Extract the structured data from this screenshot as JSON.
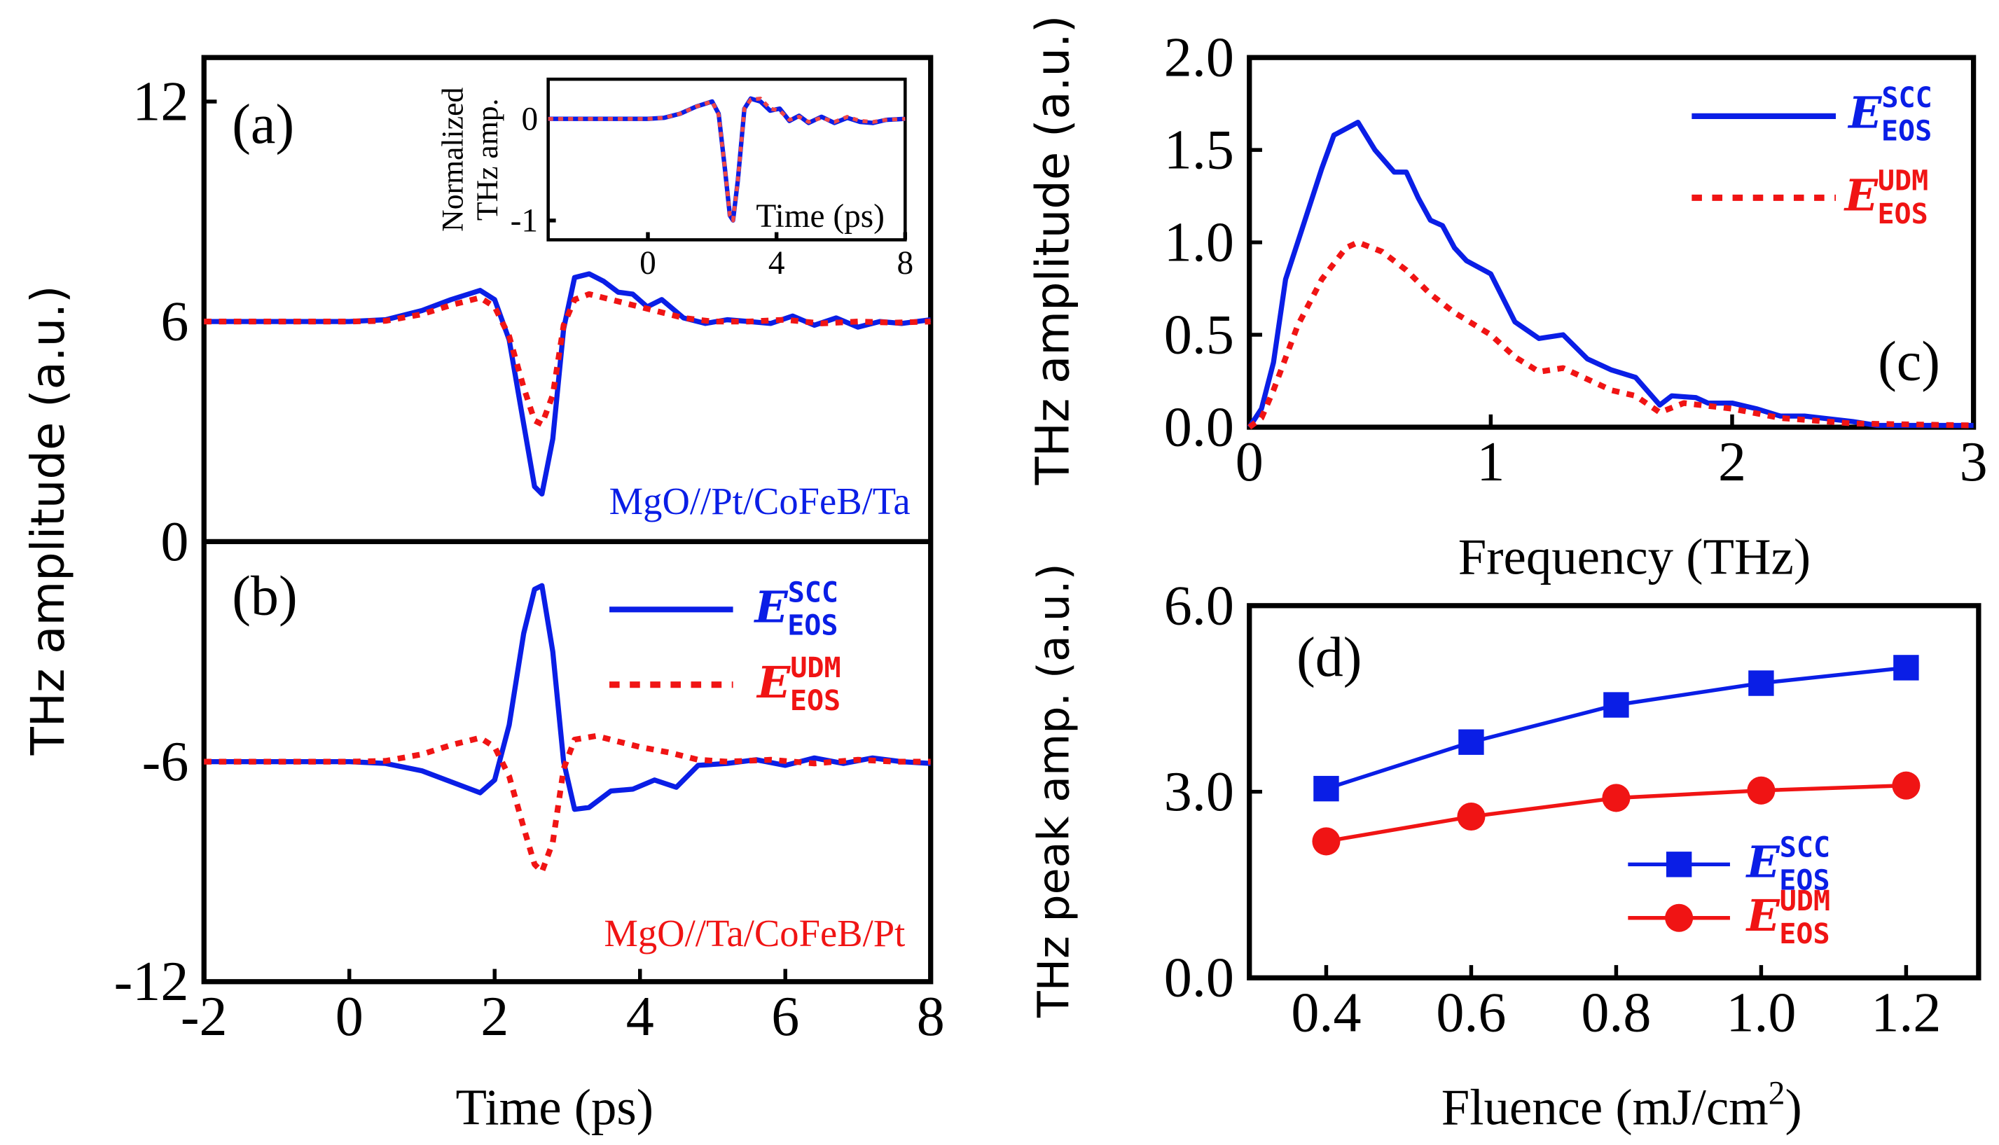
{
  "colors": {
    "scc": "#0a1ee6",
    "udm": "#f01414",
    "inset_udm": "#f04848"
  },
  "legend": {
    "scc": {
      "main": "E",
      "sup": "SCC",
      "sub": "EOS"
    },
    "udm": {
      "main": "E",
      "sup": "UDM",
      "sub": "EOS"
    }
  },
  "chart_data": [
    {
      "id": "ab",
      "type": "line",
      "panels": [
        "(a)",
        "(b)"
      ],
      "xlabel": "Time (ps)",
      "ylabel": "THz amplitude (a.u.)",
      "xlim": [
        -2,
        8
      ],
      "ylim": [
        -12,
        13.2
      ],
      "xticks": [
        "-2",
        "0",
        "2",
        "4",
        "6",
        "8"
      ],
      "xtick_values": [
        -2,
        0,
        2,
        4,
        6,
        8
      ],
      "yticks": [
        "12",
        "6",
        "0",
        "-6",
        "-12"
      ],
      "ytick_values": [
        12,
        6,
        0,
        -6,
        -12
      ],
      "annotations": {
        "a": "MgO//Pt/CoFeB/Ta",
        "b": "MgO//Ta/CoFeB/Pt"
      },
      "series": [
        {
          "name": "E_EOS^SCC",
          "panel": "a",
          "style": "solid",
          "x": [
            -2,
            0,
            0.5,
            1.0,
            1.4,
            1.8,
            2.0,
            2.2,
            2.4,
            2.55,
            2.65,
            2.8,
            2.95,
            3.1,
            3.3,
            3.5,
            3.7,
            3.9,
            4.1,
            4.3,
            4.6,
            4.9,
            5.2,
            5.5,
            5.8,
            6.1,
            6.4,
            6.7,
            7.0,
            7.3,
            7.6,
            8
          ],
          "y": [
            6,
            6,
            6.05,
            6.3,
            6.6,
            6.85,
            6.6,
            5.5,
            3.2,
            1.5,
            1.3,
            2.8,
            5.8,
            7.2,
            7.3,
            7.1,
            6.8,
            6.75,
            6.4,
            6.6,
            6.1,
            5.95,
            6.05,
            6.0,
            5.95,
            6.15,
            5.9,
            6.1,
            5.85,
            6.0,
            5.95,
            6.05
          ]
        },
        {
          "name": "E_EOS^UDM",
          "panel": "a",
          "style": "dotted",
          "x": [
            -2,
            0,
            0.5,
            1.0,
            1.4,
            1.8,
            2.0,
            2.2,
            2.4,
            2.55,
            2.65,
            2.8,
            2.95,
            3.1,
            3.3,
            3.6,
            3.9,
            4.2,
            4.6,
            5.0,
            5.5,
            6.0,
            6.5,
            7.0,
            7.5,
            8
          ],
          "y": [
            6,
            6,
            6.02,
            6.2,
            6.45,
            6.65,
            6.4,
            5.6,
            4.2,
            3.3,
            3.2,
            4.0,
            5.9,
            6.6,
            6.75,
            6.6,
            6.45,
            6.3,
            6.1,
            6.0,
            6.0,
            6.05,
            5.95,
            6.0,
            5.97,
            6.0
          ]
        },
        {
          "name": "E_EOS^SCC",
          "panel": "b",
          "style": "solid",
          "x": [
            -2,
            0,
            0.5,
            1.0,
            1.4,
            1.8,
            2.0,
            2.2,
            2.4,
            2.55,
            2.65,
            2.8,
            2.95,
            3.1,
            3.3,
            3.6,
            3.9,
            4.2,
            4.5,
            4.8,
            5.2,
            5.6,
            6.0,
            6.4,
            6.8,
            7.2,
            7.6,
            8
          ],
          "y": [
            -6,
            -6,
            -6.05,
            -6.25,
            -6.55,
            -6.85,
            -6.5,
            -5.0,
            -2.5,
            -1.3,
            -1.2,
            -3.0,
            -6.0,
            -7.3,
            -7.25,
            -6.8,
            -6.75,
            -6.5,
            -6.7,
            -6.1,
            -6.05,
            -5.95,
            -6.1,
            -5.9,
            -6.05,
            -5.9,
            -6.0,
            -6.05
          ]
        },
        {
          "name": "E_EOS^UDM",
          "panel": "b",
          "style": "dotted",
          "x": [
            -2,
            0,
            0.5,
            1.0,
            1.4,
            1.8,
            2.0,
            2.2,
            2.4,
            2.55,
            2.65,
            2.8,
            2.95,
            3.1,
            3.4,
            3.7,
            4.0,
            4.4,
            4.8,
            5.2,
            5.8,
            6.4,
            7.0,
            7.5,
            8
          ],
          "y": [
            -6,
            -6,
            -5.98,
            -5.8,
            -5.55,
            -5.35,
            -5.6,
            -6.4,
            -7.8,
            -8.8,
            -9.0,
            -8.2,
            -6.2,
            -5.4,
            -5.3,
            -5.45,
            -5.6,
            -5.75,
            -5.95,
            -6.0,
            -5.95,
            -6.05,
            -5.95,
            -6.0,
            -6.0
          ]
        }
      ]
    },
    {
      "id": "inset",
      "type": "line",
      "xlabel": "Time (ps)",
      "ylabel": [
        "Normalized",
        "THz amp."
      ],
      "xlim": [
        -3.1,
        8
      ],
      "ylim": [
        -1.19,
        0.39
      ],
      "xticks": [
        "0",
        "4",
        "8"
      ],
      "xtick_values": [
        0,
        4,
        8
      ],
      "yticks": [
        "0",
        "-1"
      ],
      "ytick_values": [
        0,
        -1
      ],
      "series": [
        {
          "style": "solid",
          "x": [
            -3.1,
            0,
            0.5,
            1.0,
            1.5,
            2.0,
            2.2,
            2.4,
            2.55,
            2.65,
            2.8,
            3.0,
            3.2,
            3.5,
            3.8,
            4.1,
            4.4,
            4.7,
            5.0,
            5.4,
            5.8,
            6.2,
            6.6,
            7.0,
            7.4,
            8
          ],
          "y": [
            0,
            0,
            0.01,
            0.05,
            0.12,
            0.17,
            0.05,
            -0.5,
            -0.95,
            -1.0,
            -0.6,
            0.1,
            0.2,
            0.17,
            0.08,
            0.1,
            -0.02,
            0.03,
            -0.04,
            0.02,
            -0.04,
            0.01,
            -0.03,
            -0.04,
            -0.01,
            0
          ]
        },
        {
          "style": "dotted",
          "x": [
            -3.1,
            0,
            0.5,
            1.0,
            1.5,
            2.0,
            2.2,
            2.4,
            2.55,
            2.65,
            2.8,
            3.0,
            3.2,
            3.5,
            3.8,
            4.1,
            4.4,
            4.7,
            5.0,
            5.4,
            5.8,
            6.2,
            6.6,
            7.0,
            7.4,
            8
          ],
          "y": [
            0,
            0,
            0.01,
            0.05,
            0.12,
            0.17,
            0.04,
            -0.5,
            -0.95,
            -1.0,
            -0.6,
            0.1,
            0.19,
            0.2,
            0.1,
            0.08,
            -0.01,
            0.02,
            -0.03,
            0.01,
            -0.03,
            0.02,
            -0.02,
            -0.03,
            -0.01,
            0
          ]
        }
      ]
    },
    {
      "id": "c",
      "type": "line",
      "panel": "(c)",
      "xlabel": "Frequency (THz)",
      "ylabel": "THz amplitude (a.u.)",
      "xlim": [
        0,
        3
      ],
      "ylim": [
        0,
        2
      ],
      "xticks": [
        "0",
        "1",
        "2",
        "3"
      ],
      "xtick_values": [
        0,
        1,
        2,
        3
      ],
      "yticks": [
        "0.0",
        "0.5",
        "1.0",
        "1.5",
        "2.0"
      ],
      "ytick_values": [
        0,
        0.5,
        1,
        1.5,
        2
      ],
      "legend_position": "top-right",
      "series": [
        {
          "name": "E_EOS^SCC",
          "style": "solid",
          "x": [
            0,
            0.05,
            0.1,
            0.15,
            0.2,
            0.3,
            0.35,
            0.45,
            0.52,
            0.6,
            0.65,
            0.7,
            0.75,
            0.8,
            0.85,
            0.9,
            1.0,
            1.1,
            1.2,
            1.3,
            1.4,
            1.5,
            1.6,
            1.7,
            1.75,
            1.85,
            1.9,
            2.0,
            2.1,
            2.2,
            2.3,
            2.5,
            2.6,
            3.0
          ],
          "y": [
            0,
            0.1,
            0.35,
            0.8,
            1.0,
            1.4,
            1.58,
            1.65,
            1.5,
            1.38,
            1.38,
            1.24,
            1.12,
            1.09,
            0.97,
            0.9,
            0.83,
            0.57,
            0.48,
            0.5,
            0.37,
            0.31,
            0.27,
            0.12,
            0.17,
            0.16,
            0.13,
            0.13,
            0.1,
            0.06,
            0.06,
            0.03,
            0.01,
            0.01
          ]
        },
        {
          "name": "E_EOS^UDM",
          "style": "dotted",
          "x": [
            0,
            0.05,
            0.1,
            0.2,
            0.3,
            0.4,
            0.45,
            0.55,
            0.65,
            0.75,
            0.85,
            1.0,
            1.1,
            1.2,
            1.3,
            1.5,
            1.6,
            1.7,
            1.8,
            2.0,
            2.2,
            2.5,
            3.0
          ],
          "y": [
            0,
            0.05,
            0.2,
            0.55,
            0.8,
            0.97,
            1.0,
            0.95,
            0.85,
            0.72,
            0.62,
            0.5,
            0.38,
            0.3,
            0.32,
            0.2,
            0.17,
            0.08,
            0.13,
            0.1,
            0.05,
            0.02,
            0.01
          ]
        }
      ]
    },
    {
      "id": "d",
      "type": "line",
      "panel": "(d)",
      "xlabel": "Fluence (mJ/cm",
      "xlabel_sup": "2",
      "xlabel_end": ")",
      "ylabel": "THz peak amp. (a.u.)",
      "xlim": [
        0.294,
        1.3
      ],
      "ylim": [
        0,
        6
      ],
      "xticks": [
        "0.4",
        "0.6",
        "0.8",
        "1.0",
        "1.2"
      ],
      "xtick_values": [
        0.4,
        0.6,
        0.8,
        1.0,
        1.2
      ],
      "yticks": [
        "0.0",
        "3.0",
        "6.0"
      ],
      "ytick_values": [
        0,
        3,
        6
      ],
      "legend_position": "bottom-right",
      "series": [
        {
          "name": "E_EOS^SCC",
          "marker": "square",
          "x": [
            0.4,
            0.6,
            0.8,
            1.0,
            1.2
          ],
          "y": [
            3.05,
            3.8,
            4.4,
            4.75,
            5.0
          ]
        },
        {
          "name": "E_EOS^UDM",
          "marker": "circle",
          "x": [
            0.4,
            0.6,
            0.8,
            1.0,
            1.2
          ],
          "y": [
            2.2,
            2.6,
            2.9,
            3.02,
            3.1
          ]
        }
      ]
    }
  ]
}
